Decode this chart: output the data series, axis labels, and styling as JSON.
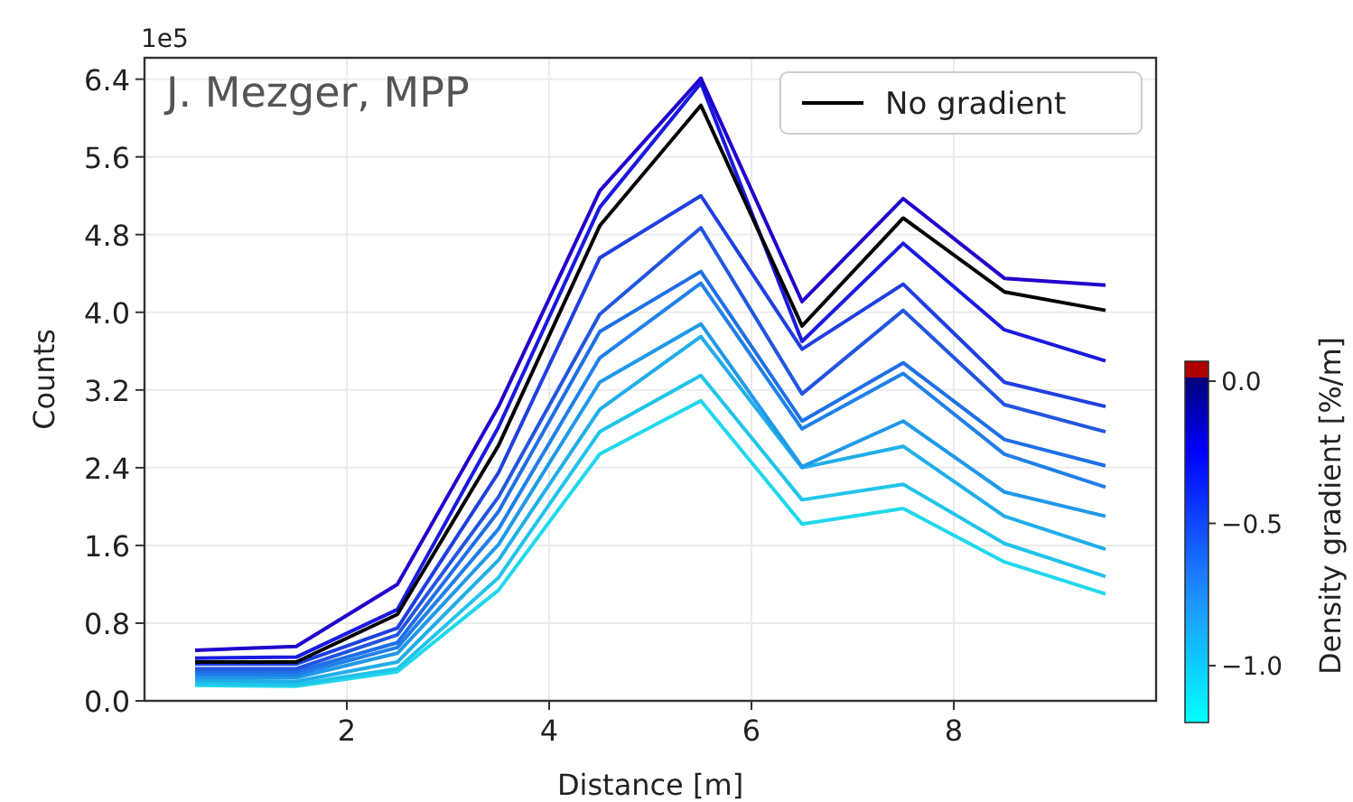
{
  "chart_data": {
    "type": "line",
    "xlabel": "Distance [m]",
    "ylabel": "Counts",
    "clabel": "Density gradient [%/m]",
    "annotations": [
      "1e5",
      "J. Mezger, MPP"
    ],
    "x": [
      0.5,
      1.5,
      2.5,
      3.5,
      4.5,
      5.5,
      6.5,
      7.5,
      8.5,
      9.5
    ],
    "xlim": [
      0,
      10
    ],
    "xticks": [
      2,
      4,
      6,
      8
    ],
    "ylim": [
      0,
      6.62
    ],
    "yticks": [
      {
        "value": 0,
        "label": "0.0"
      },
      0.8,
      1.6,
      2.4,
      3.2,
      {
        "value": 4,
        "label": "4.0"
      },
      4.8,
      5.6,
      6.4
    ],
    "clim": [
      -1.2,
      0.07
    ],
    "cticks": [
      {
        "value": 0,
        "label": "0.0"
      },
      {
        "value": -0.5,
        "label": "−0.5"
      },
      {
        "value": -1,
        "label": "−1.0"
      }
    ],
    "grid": true,
    "legend": "top right",
    "line_style": "solid",
    "marker": "none",
    "series": [
      {
        "color": "#20d8ec",
        "values": [
          0.16,
          0.15,
          0.3,
          1.14,
          2.54,
          3.09,
          1.82,
          1.98,
          1.43,
          1.1
        ]
      },
      {
        "color": "#20c4ea",
        "values": [
          0.18,
          0.17,
          0.33,
          1.27,
          2.77,
          3.35,
          2.07,
          2.23,
          1.62,
          1.28
        ]
      },
      {
        "color": "#20aee8",
        "values": [
          0.21,
          0.2,
          0.4,
          1.45,
          3.0,
          3.75,
          2.4,
          2.62,
          1.9,
          1.56
        ]
      },
      {
        "color": "#2099e8",
        "values": [
          0.24,
          0.24,
          0.49,
          1.61,
          3.28,
          3.88,
          2.41,
          2.88,
          2.15,
          1.9
        ]
      },
      {
        "color": "#2080e8",
        "values": [
          0.27,
          0.27,
          0.55,
          1.77,
          3.53,
          4.3,
          2.8,
          3.37,
          2.54,
          2.2
        ]
      },
      {
        "color": "#1f6fe6",
        "values": [
          0.3,
          0.3,
          0.6,
          1.95,
          3.8,
          4.42,
          2.88,
          3.48,
          2.69,
          2.42
        ]
      },
      {
        "color": "#2255e0",
        "values": [
          0.33,
          0.33,
          0.68,
          2.1,
          3.98,
          4.87,
          3.16,
          4.02,
          3.05,
          2.77
        ]
      },
      {
        "color": "#1f3fe0",
        "values": [
          0.38,
          0.38,
          0.75,
          2.35,
          4.56,
          5.2,
          3.62,
          4.29,
          3.28,
          3.03
        ]
      },
      {
        "color": "#1a1ae0",
        "values": [
          0.44,
          0.45,
          0.94,
          2.82,
          5.08,
          6.36,
          3.7,
          4.71,
          3.82,
          3.5
        ]
      },
      {
        "color": "#2000cc",
        "values": [
          0.52,
          0.56,
          1.2,
          3.03,
          5.25,
          6.41,
          4.11,
          5.17,
          4.35,
          4.28
        ]
      },
      {
        "name": "No gradient",
        "color": "#000000",
        "values": [
          0.4,
          0.4,
          0.89,
          2.63,
          4.89,
          6.13,
          3.86,
          4.97,
          4.21,
          4.02
        ]
      }
    ]
  }
}
